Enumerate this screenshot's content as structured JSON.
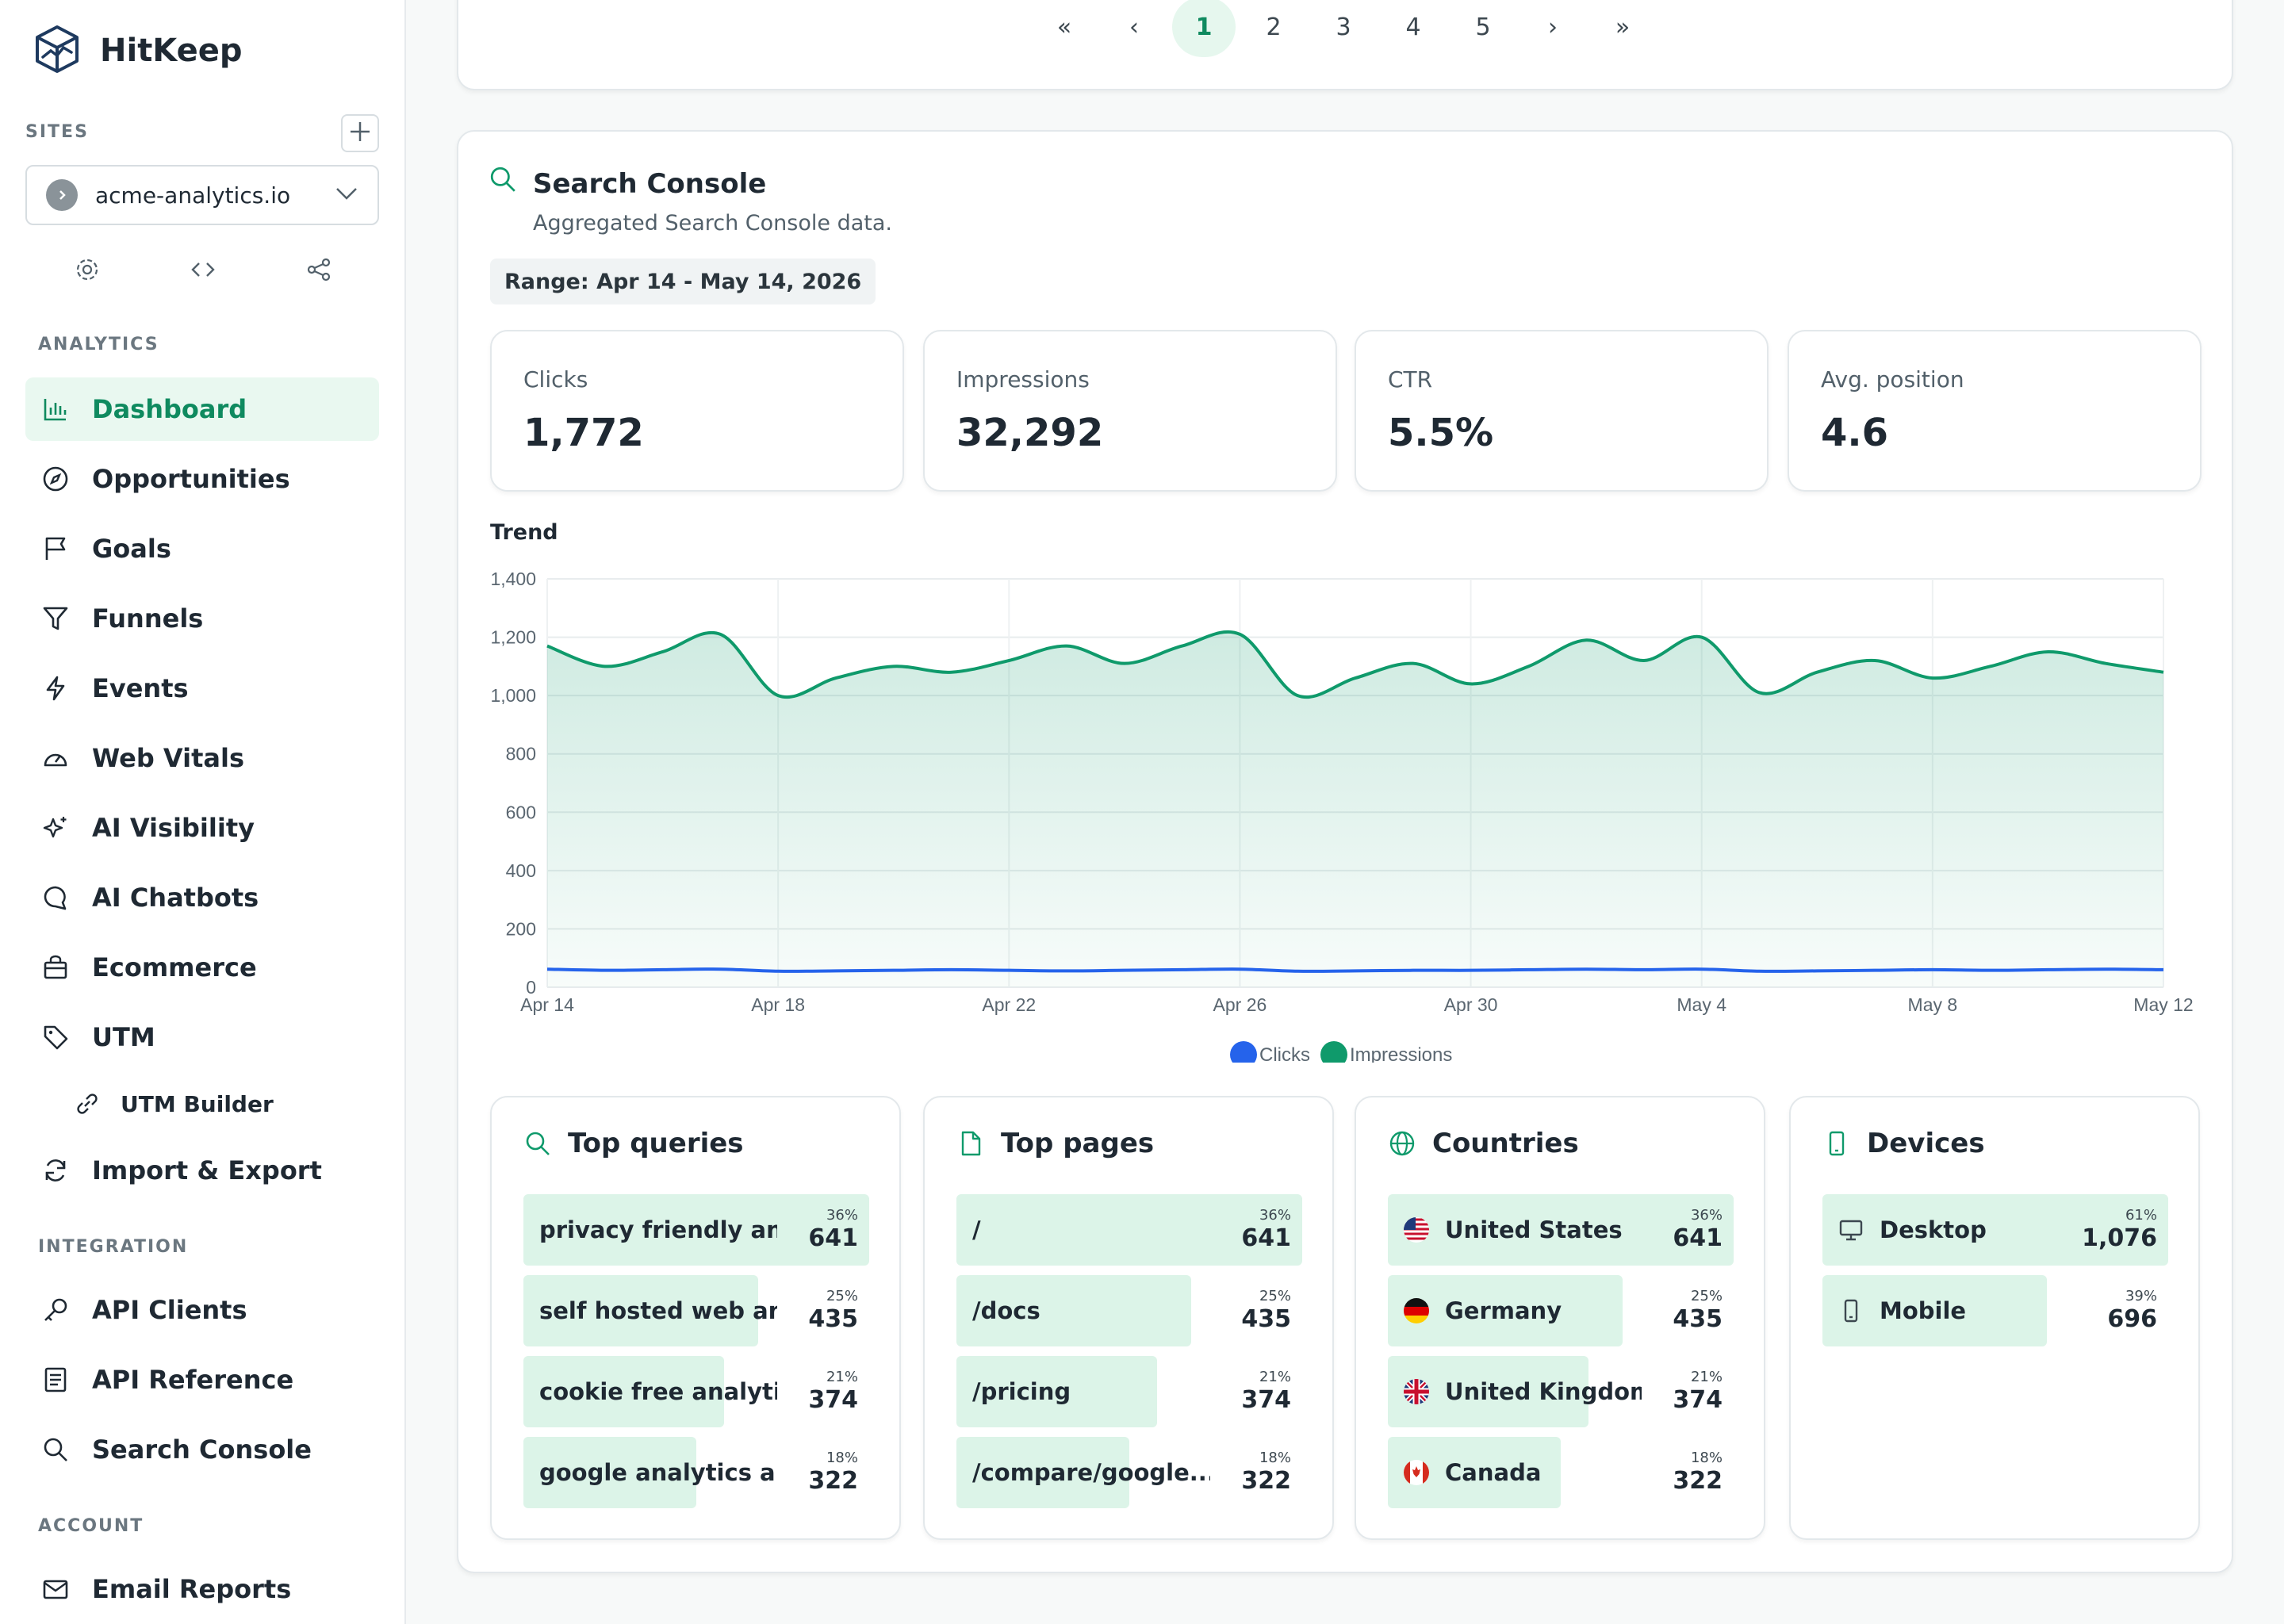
{
  "app": {
    "name": "HitKeep"
  },
  "sidebar": {
    "sites_label": "SITES",
    "selected_site": "acme-analytics.io",
    "analytics_label": "ANALYTICS",
    "integration_label": "INTEGRATION",
    "account_label": "ACCOUNT",
    "analytics_items": [
      {
        "label": "Dashboard",
        "icon": "bar-chart-icon",
        "active": true
      },
      {
        "label": "Opportunities",
        "icon": "compass-icon"
      },
      {
        "label": "Goals",
        "icon": "flag-icon"
      },
      {
        "label": "Funnels",
        "icon": "filter-icon"
      },
      {
        "label": "Events",
        "icon": "bolt-icon"
      },
      {
        "label": "Web Vitals",
        "icon": "gauge-icon"
      },
      {
        "label": "AI Visibility",
        "icon": "sparkles-icon"
      },
      {
        "label": "AI Chatbots",
        "icon": "chat-icon"
      },
      {
        "label": "Ecommerce",
        "icon": "shopping-bag-icon"
      },
      {
        "label": "UTM",
        "icon": "tag-icon"
      },
      {
        "label": "UTM Builder",
        "icon": "link-icon"
      },
      {
        "label": "Import & Export",
        "icon": "refresh-icon"
      }
    ],
    "integration_items": [
      {
        "label": "API Clients",
        "icon": "key-icon"
      },
      {
        "label": "API Reference",
        "icon": "book-icon"
      },
      {
        "label": "Search Console",
        "icon": "search-icon"
      }
    ],
    "account_items": [
      {
        "label": "Email Reports",
        "icon": "mail-icon"
      }
    ]
  },
  "pagination": {
    "pages": [
      "1",
      "2",
      "3",
      "4",
      "5"
    ],
    "current": "1",
    "first": "«",
    "prev": "‹",
    "next": "›",
    "last": "»"
  },
  "search_console": {
    "title": "Search Console",
    "subtitle": "Aggregated Search Console data.",
    "range": "Range: Apr 14 - May 14, 2026",
    "metrics": [
      {
        "label": "Clicks",
        "value": "1,772"
      },
      {
        "label": "Impressions",
        "value": "32,292"
      },
      {
        "label": "CTR",
        "value": "5.5%"
      },
      {
        "label": "Avg. position",
        "value": "4.6"
      }
    ],
    "trend_label": "Trend",
    "colors": {
      "clicks": "#2563eb",
      "impressions": "#0f9a6b"
    }
  },
  "chart_data": {
    "type": "area",
    "ylim": [
      0,
      1400
    ],
    "yticks": [
      0,
      200,
      400,
      600,
      800,
      1000,
      1200,
      1400
    ],
    "xtick_labels": [
      "Apr 14",
      "Apr 18",
      "Apr 22",
      "Apr 26",
      "Apr 30",
      "May 4",
      "May 8",
      "May 12"
    ],
    "x": [
      "Apr 14",
      "Apr 15",
      "Apr 16",
      "Apr 17",
      "Apr 18",
      "Apr 19",
      "Apr 20",
      "Apr 21",
      "Apr 22",
      "Apr 23",
      "Apr 24",
      "Apr 25",
      "Apr 26",
      "Apr 27",
      "Apr 28",
      "Apr 29",
      "Apr 30",
      "May 1",
      "May 2",
      "May 3",
      "May 4",
      "May 5",
      "May 6",
      "May 7",
      "May 8",
      "May 9",
      "May 10",
      "May 11",
      "May 12"
    ],
    "series": [
      {
        "name": "Clicks",
        "values": [
          62,
          58,
          60,
          62,
          55,
          56,
          58,
          60,
          58,
          56,
          58,
          60,
          62,
          55,
          56,
          58,
          58,
          60,
          62,
          60,
          62,
          55,
          56,
          58,
          60,
          58,
          60,
          62,
          60
        ]
      },
      {
        "name": "Impressions",
        "values": [
          1170,
          1100,
          1150,
          1210,
          1000,
          1060,
          1100,
          1080,
          1120,
          1170,
          1110,
          1170,
          1210,
          1000,
          1060,
          1110,
          1040,
          1100,
          1190,
          1120,
          1200,
          1010,
          1080,
          1120,
          1060,
          1100,
          1150,
          1110,
          1080
        ]
      }
    ],
    "legend": "bottom-center"
  },
  "panels": [
    {
      "title": "Top queries",
      "icon": "search-icon",
      "rows": [
        {
          "label": "privacy friendly an...",
          "pct": "36%",
          "value": "641",
          "share": 1.0
        },
        {
          "label": "self hosted web an...",
          "pct": "25%",
          "value": "435",
          "share": 0.68
        },
        {
          "label": "cookie free analytics",
          "pct": "21%",
          "value": "374",
          "share": 0.58
        },
        {
          "label": "google analytics al...",
          "pct": "18%",
          "value": "322",
          "share": 0.5
        }
      ]
    },
    {
      "title": "Top pages",
      "icon": "file-icon",
      "rows": [
        {
          "label": "/",
          "pct": "36%",
          "value": "641",
          "share": 1.0
        },
        {
          "label": "/docs",
          "pct": "25%",
          "value": "435",
          "share": 0.68
        },
        {
          "label": "/pricing",
          "pct": "21%",
          "value": "374",
          "share": 0.58
        },
        {
          "label": "/compare/google...",
          "pct": "18%",
          "value": "322",
          "share": 0.5
        }
      ]
    },
    {
      "title": "Countries",
      "icon": "globe-icon",
      "rows": [
        {
          "label": "United States",
          "pct": "36%",
          "value": "641",
          "share": 1.0,
          "icon": "us-flag-icon"
        },
        {
          "label": "Germany",
          "pct": "25%",
          "value": "435",
          "share": 0.68,
          "icon": "germany-flag-icon"
        },
        {
          "label": "United Kingdom",
          "pct": "21%",
          "value": "374",
          "share": 0.58,
          "icon": "uk-flag-icon"
        },
        {
          "label": "Canada",
          "pct": "18%",
          "value": "322",
          "share": 0.5,
          "icon": "canada-flag-icon"
        }
      ]
    },
    {
      "title": "Devices",
      "icon": "phone-icon",
      "rows": [
        {
          "label": "Desktop",
          "pct": "61%",
          "value": "1,076",
          "share": 1.0,
          "icon": "monitor-icon"
        },
        {
          "label": "Mobile",
          "pct": "39%",
          "value": "696",
          "share": 0.65,
          "icon": "phone-icon"
        }
      ]
    }
  ]
}
